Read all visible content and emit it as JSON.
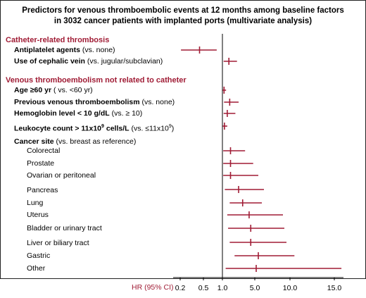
{
  "title_line1": "Predictors for venous thromboembolic events at 12 months among baseline factors",
  "title_line2": "in 3032 cancer patients with implanted ports (multivariate analysis)",
  "sections": {
    "catheter": "Catheter-related thrombosis",
    "vte": "Venous thromboembolism not related to catheter"
  },
  "rows": {
    "antiplatelet": {
      "main": "Antiplatelet agents",
      "ref": " (vs. none)"
    },
    "cephalic": {
      "main": "Use of cephalic vein",
      "ref": " (vs. jugular/subclavian)"
    },
    "age": {
      "main": "Age ≥60 yr",
      "ref": " ( vs. <60 yr)"
    },
    "prev_vte": {
      "main": "Previous venous thromboembolism",
      "ref": " (vs. none)"
    },
    "hemoglobin": {
      "main": "Hemoglobin level < 10 g/dL",
      "ref": " (vs. ≥ 10)"
    },
    "leukocyte": {
      "main": "Leukocyte count > 11x10",
      "sup": "9",
      "main2": " cells/L",
      "ref": " (vs. ≤11x10",
      "refsup": "9",
      "ref2": ")"
    },
    "cancer_site": {
      "main": "Cancer site",
      "ref": " (vs. breast as reference)"
    },
    "colorectal": "Colorectal",
    "prostate": "Prostate",
    "ovarian": "Ovarian or peritoneal",
    "pancreas": "Pancreas",
    "lung": "Lung",
    "uterus": "Uterus",
    "bladder": "Bladder or urinary tract",
    "liver": "Liver or biliary tract",
    "gastric": "Gastric",
    "other": "Other"
  },
  "x_axis_label": "HR (95% CI)",
  "colors": {
    "accent": "#a01c35",
    "axis": "#000000"
  },
  "chart_data": {
    "type": "forest",
    "x_scale": "log-like",
    "ticks": [
      0.2,
      0.5,
      1.0,
      5.0,
      10.0,
      15.0
    ],
    "tick_labels": [
      "0.2",
      "0.5",
      "1.0",
      "5.0",
      "10.0",
      "15.0"
    ],
    "series": [
      {
        "key": "antiplatelet",
        "hr": 0.45,
        "lo": 0.21,
        "hi": 0.85
      },
      {
        "key": "cephalic",
        "hr": 1.8,
        "lo": 1.15,
        "hi": 2.8
      },
      {
        "key": "age",
        "hr": 1.2,
        "lo": 1.02,
        "hi": 1.45
      },
      {
        "key": "prev_vte",
        "hr": 1.9,
        "lo": 1.2,
        "hi": 3.0
      },
      {
        "key": "hemoglobin",
        "hr": 1.6,
        "lo": 1.15,
        "hi": 2.6
      },
      {
        "key": "leukocyte",
        "hr": 1.25,
        "lo": 1.02,
        "hi": 1.6
      },
      {
        "key": "colorectal",
        "hr": 2.0,
        "lo": 1.1,
        "hi": 3.8
      },
      {
        "key": "prostate",
        "hr": 2.0,
        "lo": 1.1,
        "hi": 4.8
      },
      {
        "key": "ovarian",
        "hr": 2.0,
        "lo": 1.1,
        "hi": 5.5
      },
      {
        "key": "pancreas",
        "hr": 3.0,
        "lo": 1.3,
        "hi": 6.3
      },
      {
        "key": "lung",
        "hr": 3.5,
        "lo": 1.9,
        "hi": 6.0
      },
      {
        "key": "uterus",
        "hr": 4.3,
        "lo": 1.6,
        "hi": 9.0
      },
      {
        "key": "bladder",
        "hr": 4.5,
        "lo": 1.7,
        "hi": 9.2
      },
      {
        "key": "liver",
        "hr": 4.5,
        "lo": 1.9,
        "hi": 9.5
      },
      {
        "key": "gastric",
        "hr": 5.5,
        "lo": 2.5,
        "hi": 10.5
      },
      {
        "key": "other",
        "hr": 5.2,
        "lo": 1.4,
        "hi": 15.8
      }
    ]
  }
}
